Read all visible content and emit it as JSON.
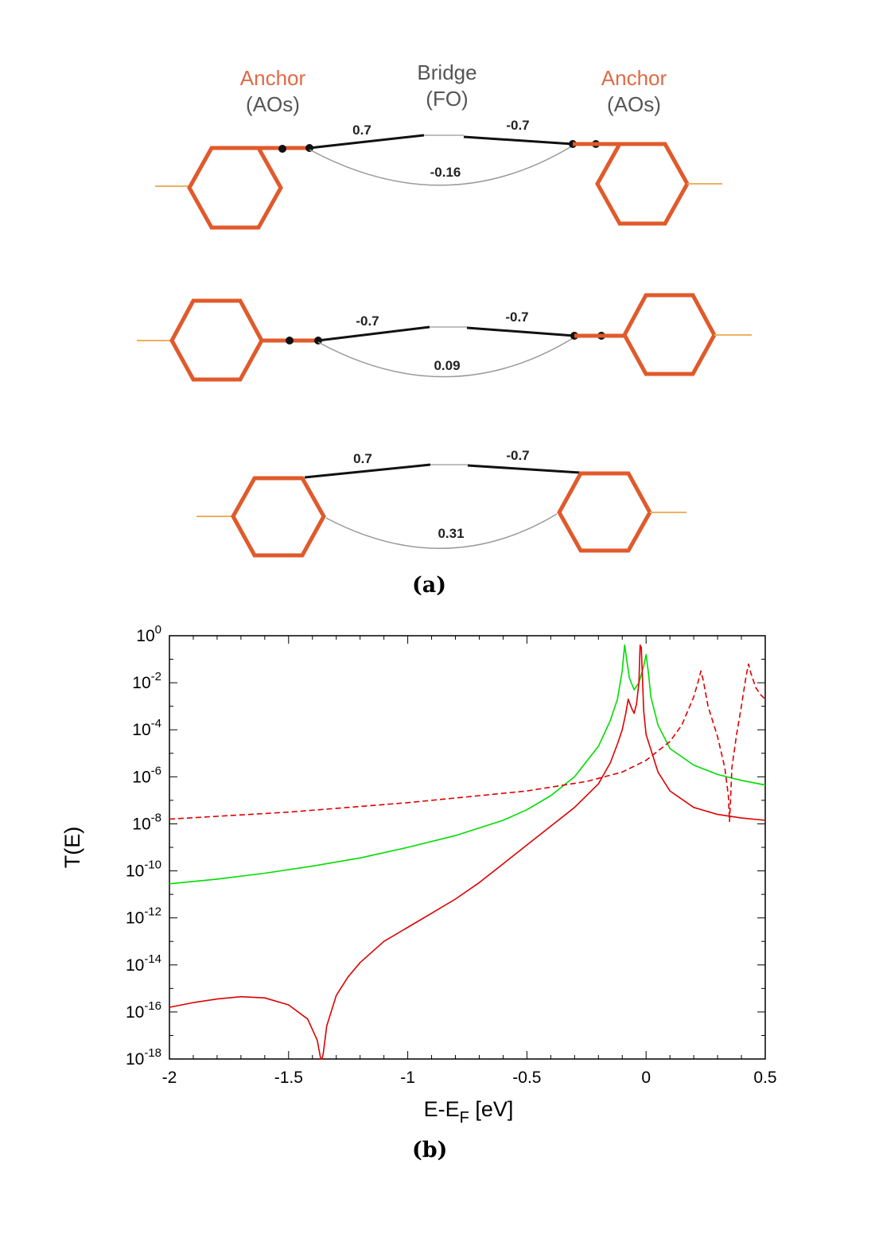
{
  "panel_a": {
    "header": {
      "left_anchor": "Anchor",
      "left_anchor_sub": "(AOs)",
      "bridge": "Bridge",
      "bridge_sub": "(FO)",
      "right_anchor": "Anchor",
      "right_anchor_sub": "(AOs)"
    },
    "rows": [
      {
        "left_coupling": "0.7",
        "right_coupling": "-0.7",
        "through": "-0.16"
      },
      {
        "left_coupling": "-0.7",
        "right_coupling": "-0.7",
        "through": "0.09"
      },
      {
        "left_coupling": "0.7",
        "right_coupling": "-0.7",
        "through": "0.31"
      }
    ],
    "caption": "(a)"
  },
  "colors": {
    "anchor": "#e05a2b",
    "anchor_text": "#e06a45",
    "tail": "#f0b060",
    "coupling_line": "#111111",
    "through_line": "#999999",
    "green": "#00dd00",
    "red": "#dd0000"
  },
  "chart_data": {
    "type": "line",
    "xlabel": "E-E_F [eV]",
    "ylabel": "T(E)",
    "xlim": [
      -2,
      0.5
    ],
    "ylim_log10": [
      -18,
      0
    ],
    "yscale": "log",
    "x_ticks": [
      "-2",
      "-1.5",
      "-1",
      "-0.5",
      "0",
      "0.5"
    ],
    "y_ticks_exponents": [
      "0",
      "-2",
      "-4",
      "-6",
      "-8",
      "-10",
      "-12",
      "-14",
      "-16",
      "-18"
    ],
    "y_tick_base": "10",
    "grid": false,
    "series": [
      {
        "color": "green",
        "style": "solid",
        "x": [
          -2,
          -1.8,
          -1.6,
          -1.4,
          -1.2,
          -1.0,
          -0.8,
          -0.6,
          -0.5,
          -0.4,
          -0.3,
          -0.2,
          -0.15,
          -0.12,
          -0.1,
          -0.09,
          -0.07,
          -0.05,
          -0.03,
          -0.01,
          0.0,
          0.01,
          0.02,
          0.05,
          0.1,
          0.2,
          0.3,
          0.4,
          0.5
        ],
        "log10_y": [
          -10.55,
          -10.35,
          -10.1,
          -9.8,
          -9.45,
          -9.0,
          -8.5,
          -7.85,
          -7.4,
          -6.8,
          -6.0,
          -4.7,
          -3.6,
          -2.7,
          -1.5,
          -0.4,
          -1.8,
          -2.3,
          -2.0,
          -1.3,
          -0.8,
          -1.6,
          -2.6,
          -3.8,
          -4.8,
          -5.5,
          -5.9,
          -6.15,
          -6.35
        ]
      },
      {
        "color": "red",
        "style": "solid",
        "x": [
          -2,
          -1.9,
          -1.8,
          -1.7,
          -1.6,
          -1.5,
          -1.42,
          -1.38,
          -1.365,
          -1.36,
          -1.355,
          -1.34,
          -1.3,
          -1.25,
          -1.2,
          -1.1,
          -1.0,
          -0.9,
          -0.8,
          -0.7,
          -0.6,
          -0.5,
          -0.4,
          -0.3,
          -0.2,
          -0.15,
          -0.12,
          -0.1,
          -0.085,
          -0.075,
          -0.06,
          -0.05,
          -0.04,
          -0.03,
          -0.025,
          -0.02,
          -0.01,
          0.0,
          0.05,
          0.1,
          0.2,
          0.3,
          0.4,
          0.5
        ],
        "log10_y": [
          -15.8,
          -15.6,
          -15.45,
          -15.35,
          -15.4,
          -15.7,
          -16.3,
          -17.2,
          -18.0,
          -18.0,
          -17.8,
          -16.6,
          -15.3,
          -14.5,
          -13.9,
          -13.0,
          -12.4,
          -11.8,
          -11.2,
          -10.5,
          -9.7,
          -8.9,
          -8.1,
          -7.3,
          -6.3,
          -5.4,
          -4.6,
          -4.0,
          -3.3,
          -2.7,
          -3.1,
          -3.3,
          -2.9,
          -2.0,
          -0.4,
          -0.5,
          -3.2,
          -4.2,
          -5.8,
          -6.6,
          -7.3,
          -7.6,
          -7.75,
          -7.85
        ]
      },
      {
        "color": "red",
        "style": "dashed",
        "x": [
          -2,
          -1.75,
          -1.5,
          -1.25,
          -1.0,
          -0.75,
          -0.5,
          -0.25,
          -0.1,
          0.0,
          0.1,
          0.15,
          0.2,
          0.22,
          0.23,
          0.24,
          0.26,
          0.3,
          0.33,
          0.345,
          0.35,
          0.355,
          0.36,
          0.38,
          0.4,
          0.42,
          0.43,
          0.44,
          0.46,
          0.48,
          0.5
        ],
        "log10_y": [
          -7.8,
          -7.65,
          -7.5,
          -7.3,
          -7.1,
          -6.85,
          -6.6,
          -6.2,
          -5.8,
          -5.3,
          -4.5,
          -3.8,
          -2.6,
          -1.9,
          -1.5,
          -1.9,
          -3.0,
          -4.3,
          -5.6,
          -6.8,
          -7.9,
          -6.8,
          -5.6,
          -4.2,
          -3.0,
          -1.7,
          -1.2,
          -1.6,
          -2.2,
          -2.5,
          -2.7
        ]
      }
    ],
    "caption": "(b)"
  }
}
